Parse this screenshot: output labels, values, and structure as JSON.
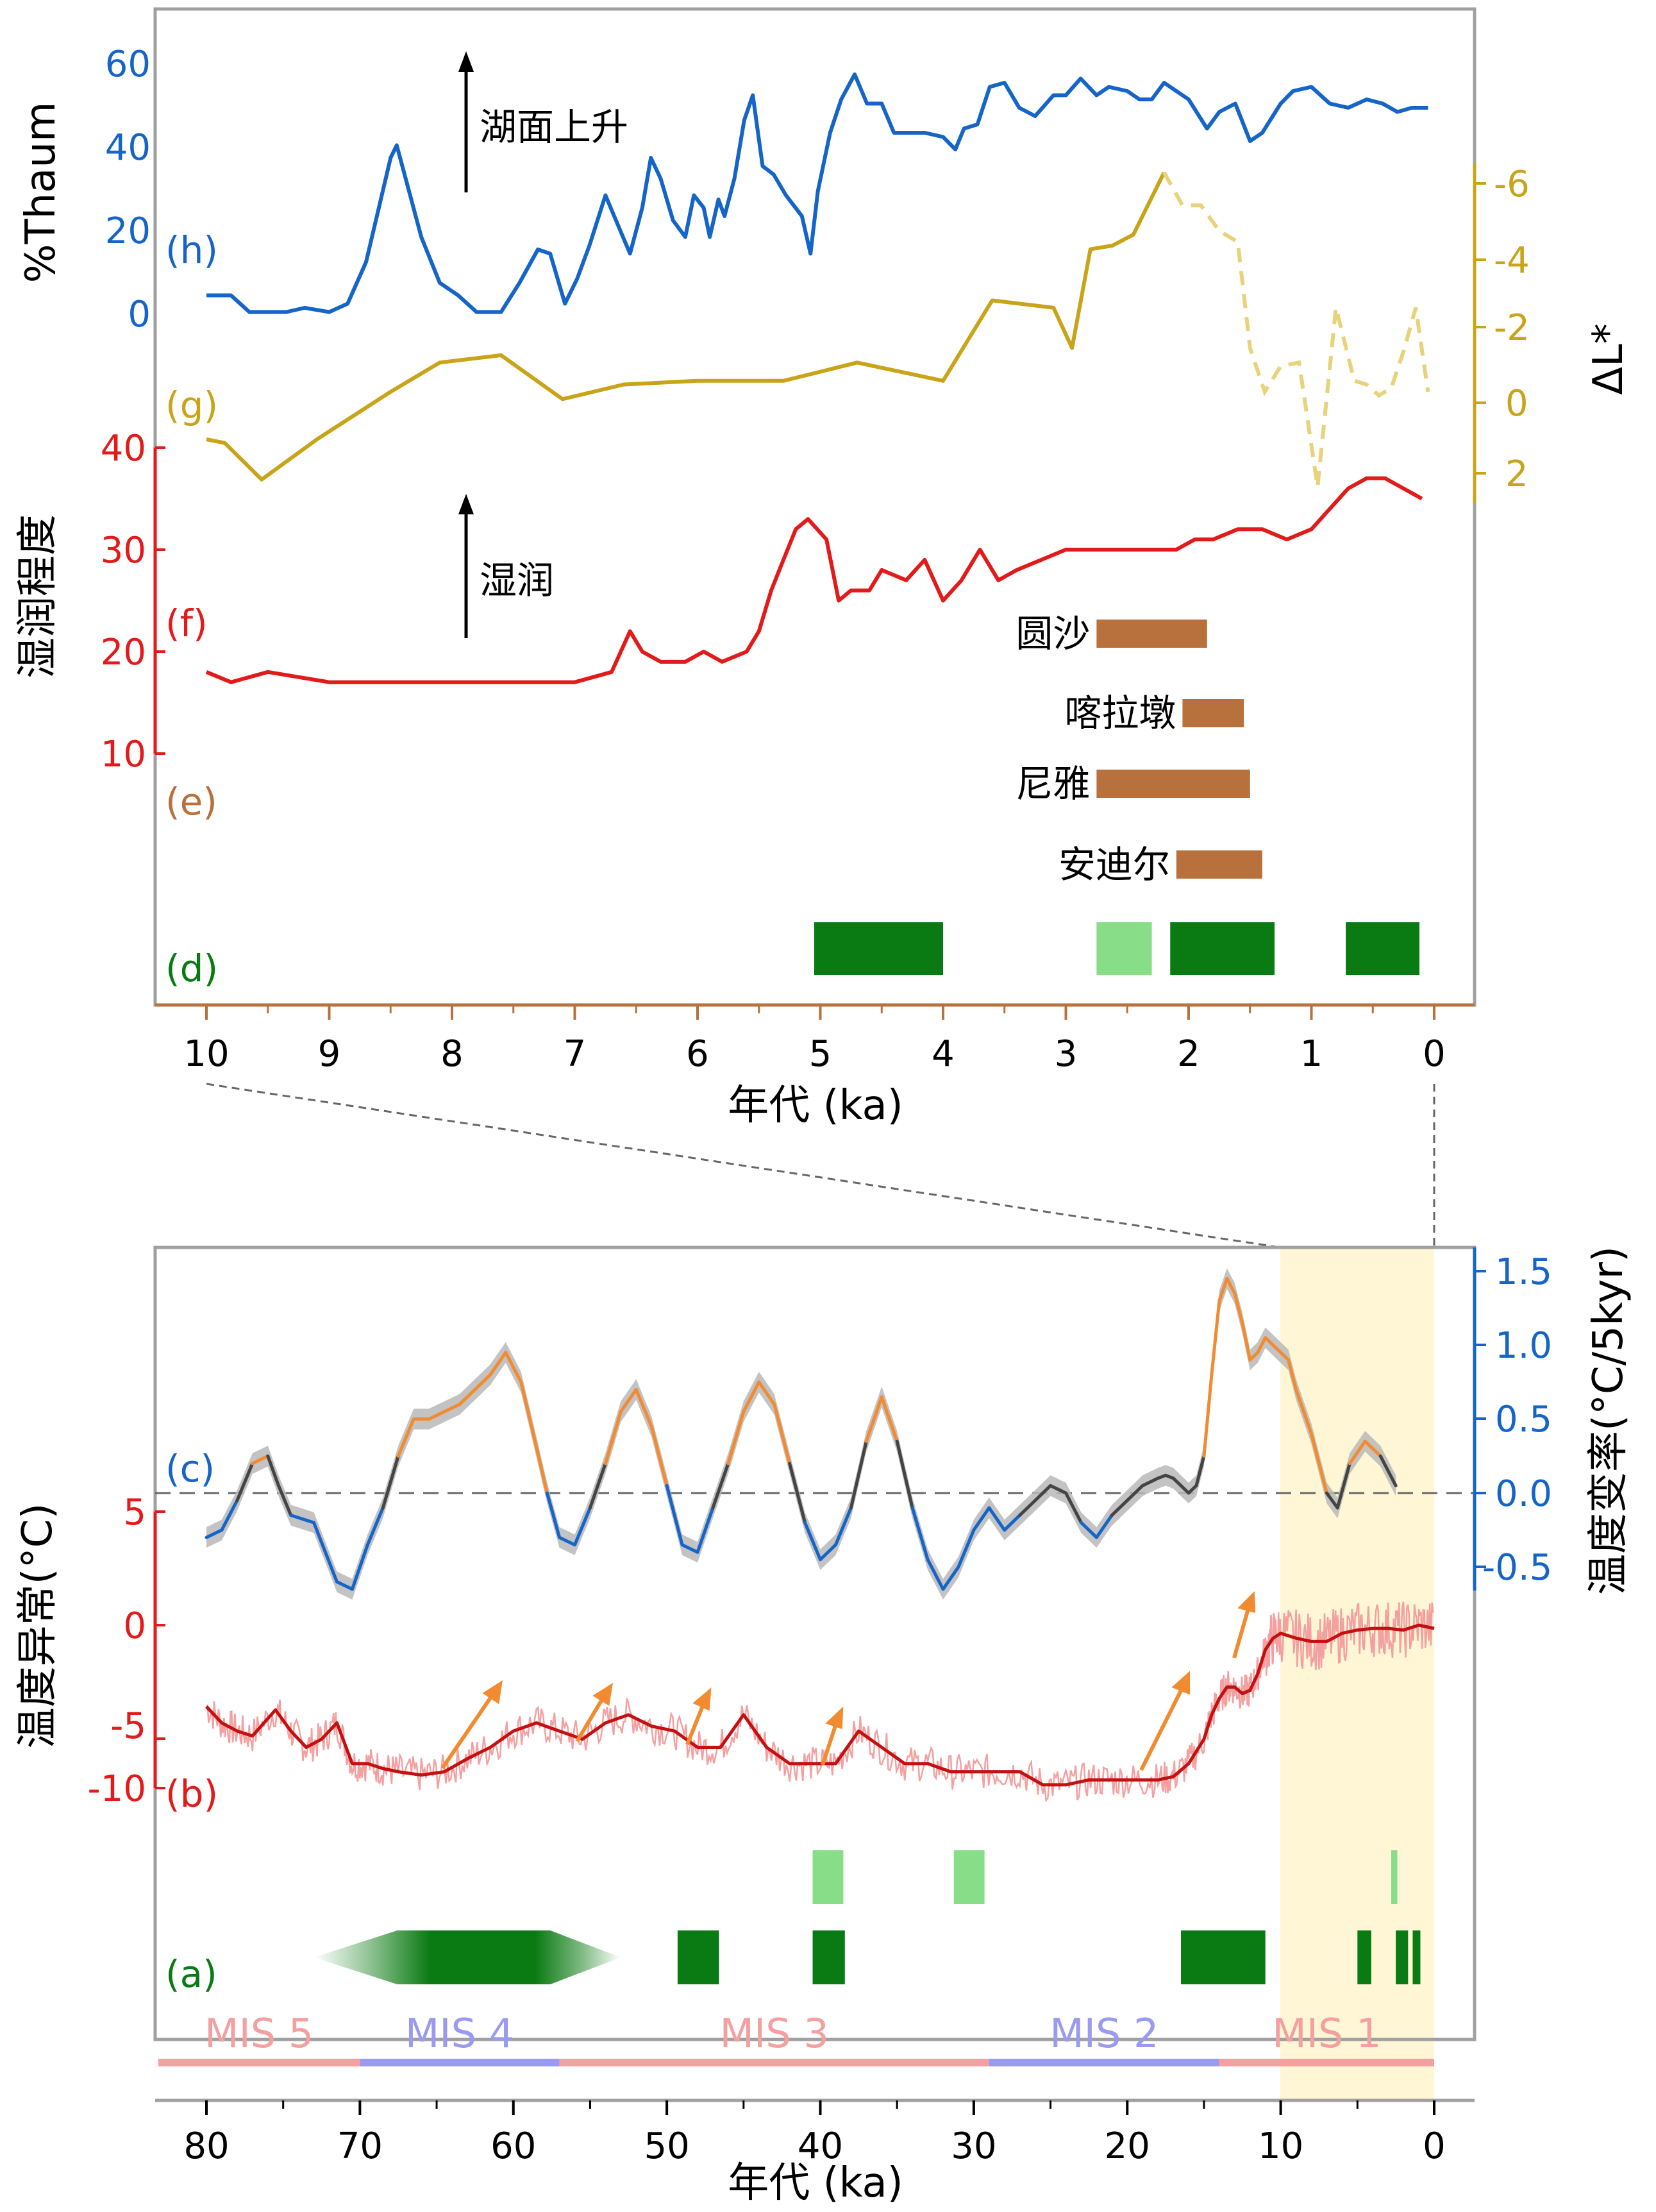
{
  "colors": {
    "blue": "#1565c8",
    "gold": "#c9a318",
    "red": "#e31a1a",
    "copper": "#b8703c",
    "darkgreen": "#0a7a12",
    "lightgreen": "#88dd88",
    "orange": "#f28b30",
    "pink": "#f4a0a0",
    "lavender": "#9a9af0",
    "holocene": "#fff6d6",
    "frame": "#a0a0a0"
  },
  "top_panel": {
    "xlabel": "年代 (ka)",
    "x_ticks": [
      "10",
      "9",
      "8",
      "7",
      "6",
      "5",
      "4",
      "3",
      "2",
      "1",
      "0"
    ],
    "xlim": [
      10,
      0
    ],
    "h": {
      "label": "(h)",
      "ylabel": "%Thaum",
      "ticks": [
        "60",
        "40",
        "20",
        "0"
      ],
      "annotation": "湖面上升"
    },
    "g": {
      "label": "(g)",
      "ylabel": "ΔL*",
      "ticks": [
        "-6",
        "-4",
        "-2",
        "0",
        "2"
      ]
    },
    "f": {
      "label": "(f)",
      "ylabel": "湿润程度",
      "ticks": [
        "40",
        "30",
        "20",
        "10"
      ],
      "annotation": "湿润"
    },
    "e": {
      "label": "(e)",
      "sites": [
        {
          "name": "圆沙",
          "start": 2.75,
          "end": 1.85
        },
        {
          "name": "喀拉墩",
          "start": 2.05,
          "end": 1.55
        },
        {
          "name": "尼雅",
          "start": 2.75,
          "end": 1.5
        },
        {
          "name": "安迪尔",
          "start": 2.1,
          "end": 1.4
        }
      ]
    },
    "d": {
      "label": "(d)",
      "bars": [
        {
          "start": 5.05,
          "end": 4.0,
          "shade": "dark"
        },
        {
          "start": 2.75,
          "end": 2.3,
          "shade": "light"
        },
        {
          "start": 2.15,
          "end": 1.3,
          "shade": "dark"
        },
        {
          "start": 0.72,
          "end": 0.12,
          "shade": "dark"
        }
      ]
    }
  },
  "bottom_panel": {
    "xlabel": "年代 (ka)",
    "x_ticks": [
      "80",
      "70",
      "60",
      "50",
      "40",
      "30",
      "20",
      "10",
      "0"
    ],
    "xlim": [
      80,
      0
    ],
    "holocene_span": [
      10,
      0
    ],
    "c": {
      "label": "(c)",
      "ylabel": "温度变率(°C/5kyr)",
      "ticks": [
        "1.5",
        "1.0",
        "0.5",
        "0.0",
        "-0.5"
      ]
    },
    "b": {
      "label": "(b)",
      "ylabel": "温度异常(°C)",
      "ticks": [
        "5",
        "0",
        "-5",
        "-10"
      ]
    },
    "a": {
      "label": "(a)",
      "light_bars": [
        {
          "start": 40.5,
          "end": 38.5
        },
        {
          "start": 31.3,
          "end": 29.3
        },
        {
          "start": 2.8,
          "end": 2.4
        }
      ],
      "dark_bars": [
        {
          "start": 49.3,
          "end": 46.6
        },
        {
          "start": 40.5,
          "end": 38.4
        },
        {
          "start": 16.5,
          "end": 11.0
        },
        {
          "start": 5.0,
          "end": 4.1
        },
        {
          "start": 2.5,
          "end": 1.7
        },
        {
          "start": 1.4,
          "end": 0.9
        }
      ],
      "gradient_span": [
        73,
        53
      ]
    },
    "mis": [
      {
        "label": "MIS 5",
        "start": 80,
        "end": 70,
        "shade": "pink"
      },
      {
        "label": "MIS 4",
        "start": 70,
        "end": 57,
        "shade": "lavender"
      },
      {
        "label": "MIS 3",
        "start": 57,
        "end": 29,
        "shade": "pink"
      },
      {
        "label": "MIS 2",
        "start": 29,
        "end": 14,
        "shade": "lavender"
      },
      {
        "label": "MIS 1",
        "start": 14,
        "end": 0,
        "shade": "pink"
      }
    ]
  },
  "chart_data": [
    {
      "type": "line",
      "series": [
        {
          "name": "%Thaum",
          "x": [
            10,
            9.8,
            9.65,
            9.5,
            9.35,
            9.2,
            9.0,
            8.85,
            8.7,
            8.5,
            8.45,
            8.35,
            8.25,
            8.1,
            7.95,
            7.8,
            7.6,
            7.45,
            7.3,
            7.2,
            7.08,
            6.98,
            6.88,
            6.75,
            6.65,
            6.55,
            6.45,
            6.38,
            6.3,
            6.2,
            6.1,
            6.03,
            5.95,
            5.9,
            5.83,
            5.78,
            5.7,
            5.62,
            5.55,
            5.47,
            5.38,
            5.28,
            5.15,
            5.08,
            5.02,
            4.92,
            4.83,
            4.72,
            4.62,
            4.5,
            4.4,
            4.3,
            4.15,
            4.0,
            3.9,
            3.83,
            3.72,
            3.62,
            3.5,
            3.38,
            3.25,
            3.1,
            3.0,
            2.88,
            2.75,
            2.65,
            2.5,
            2.4,
            2.3,
            2.2,
            2.0,
            1.85,
            1.75,
            1.62,
            1.5,
            1.4,
            1.25,
            1.15,
            1.0,
            0.85,
            0.7,
            0.55,
            0.42,
            0.3,
            0.18,
            0.05
          ],
          "y": [
            5,
            5,
            1,
            1,
            1,
            2,
            1,
            3,
            13,
            38,
            41,
            30,
            19,
            8,
            5,
            1,
            1,
            8,
            16,
            15,
            3,
            9,
            17,
            29,
            22,
            15,
            26,
            38,
            33,
            23,
            19,
            29,
            26,
            19,
            28,
            24,
            33,
            47,
            53,
            36,
            34,
            29,
            24,
            15,
            30,
            44,
            52,
            58,
            51,
            51,
            44,
            44,
            44,
            43,
            40,
            45,
            46,
            55,
            56,
            50,
            48,
            53,
            53,
            57,
            53,
            55,
            54,
            52,
            52,
            56,
            52,
            45,
            49,
            51,
            42,
            44,
            51,
            54,
            55,
            51,
            50,
            52,
            51,
            49,
            50,
            50
          ]
        },
        {
          "name": "ΔL*",
          "x": [
            10,
            9.85,
            9.55,
            9.1,
            8.5,
            8.1,
            7.6,
            7.1,
            6.6,
            6.0,
            5.3,
            4.7,
            4.0,
            3.6,
            3.1,
            2.95,
            2.8,
            2.62,
            2.45,
            2.2
          ],
          "y": [
            1.0,
            1.1,
            2.1,
            1.0,
            -0.3,
            -1.1,
            -1.3,
            -0.1,
            -0.5,
            -0.6,
            -0.6,
            -1.1,
            -0.6,
            -2.8,
            -2.6,
            -1.5,
            -4.2,
            -4.3,
            -4.6,
            -6.3
          ],
          "dashed_x": [
            2.2,
            2.05,
            1.9,
            1.75,
            1.6,
            1.5,
            1.38,
            1.25,
            1.1,
            0.95,
            0.8,
            0.65,
            0.55,
            0.45,
            0.35,
            0.25,
            0.15,
            0.05
          ],
          "dashed_y": [
            -6.3,
            -5.4,
            -5.4,
            -4.7,
            -4.4,
            -1.5,
            -0.3,
            -1.0,
            -1.1,
            2.3,
            -2.6,
            -0.6,
            -0.5,
            -0.2,
            -0.4,
            -1.4,
            -2.6,
            -0.3
          ]
        },
        {
          "name": "湿润程度",
          "x": [
            10,
            9.8,
            9.5,
            9.0,
            8.5,
            8.0,
            7.5,
            7.0,
            6.7,
            6.55,
            6.45,
            6.3,
            6.1,
            5.95,
            5.8,
            5.6,
            5.5,
            5.4,
            5.3,
            5.2,
            5.1,
            4.95,
            4.85,
            4.75,
            4.6,
            4.5,
            4.3,
            4.15,
            4.0,
            3.85,
            3.7,
            3.55,
            3.4,
            3.2,
            3.0,
            2.8,
            2.5,
            2.3,
            2.1,
            1.95,
            1.8,
            1.6,
            1.4,
            1.2,
            1.0,
            0.85,
            0.7,
            0.55,
            0.4,
            0.25,
            0.1
          ],
          "y": [
            18,
            17,
            18,
            17,
            17,
            17,
            17,
            17,
            18,
            22,
            20,
            19,
            19,
            20,
            19,
            20,
            22,
            26,
            29,
            32,
            33,
            31,
            25,
            26,
            26,
            28,
            27,
            29,
            25,
            27,
            30,
            27,
            28,
            29,
            30,
            30,
            30,
            30,
            30,
            31,
            31,
            32,
            32,
            31,
            32,
            34,
            36,
            37,
            37,
            36,
            35
          ]
        }
      ],
      "xlabel": "年代 (ka)",
      "xlim": [
        10,
        0
      ],
      "h_ylim": [
        -5,
        65
      ],
      "g_ylim": [
        2.3,
        -7.0
      ],
      "f_ylim": [
        5,
        45
      ]
    },
    {
      "type": "line",
      "series": [
        {
          "name": "温度变率",
          "x": [
            80,
            79,
            78,
            77,
            76,
            75.3,
            74.5,
            73,
            71.5,
            70.5,
            69.5,
            68.5,
            67.5,
            66.5,
            65.5,
            64.5,
            63.5,
            62.5,
            61.5,
            60.5,
            59.5,
            58.7,
            57.8,
            57,
            56,
            55,
            54,
            53,
            52,
            51,
            50,
            49,
            48,
            47,
            46,
            45,
            44,
            43,
            42,
            41,
            40,
            39,
            38,
            37,
            36,
            35,
            34,
            33,
            32,
            31,
            30,
            29,
            28,
            27,
            26,
            25,
            24,
            23,
            22,
            21,
            20,
            19,
            18,
            17.5,
            17,
            16.5,
            16,
            15.5,
            15,
            14.5,
            14,
            13.5,
            13,
            12.5,
            12,
            11.5,
            11,
            10.5,
            10,
            9.5,
            9,
            8,
            7,
            6.3,
            5.5,
            4.5,
            3.5,
            2.5
          ],
          "y": [
            -0.3,
            -0.25,
            -0.05,
            0.2,
            0.25,
            0.05,
            -0.15,
            -0.2,
            -0.6,
            -0.65,
            -0.35,
            -0.1,
            0.25,
            0.5,
            0.5,
            0.55,
            0.6,
            0.7,
            0.8,
            0.95,
            0.75,
            0.4,
            0.0,
            -0.3,
            -0.35,
            -0.1,
            0.2,
            0.55,
            0.7,
            0.45,
            0.05,
            -0.35,
            -0.4,
            -0.1,
            0.2,
            0.55,
            0.75,
            0.6,
            0.2,
            -0.2,
            -0.45,
            -0.35,
            -0.1,
            0.35,
            0.65,
            0.35,
            -0.1,
            -0.45,
            -0.65,
            -0.5,
            -0.25,
            -0.1,
            -0.25,
            -0.15,
            -0.05,
            0.05,
            0.0,
            -0.2,
            -0.3,
            -0.15,
            -0.05,
            0.05,
            0.1,
            0.12,
            0.1,
            0.05,
            0.0,
            0.05,
            0.25,
            0.8,
            1.3,
            1.45,
            1.35,
            1.15,
            0.9,
            0.95,
            1.05,
            1.0,
            0.95,
            0.9,
            0.7,
            0.4,
            0.0,
            -0.1,
            0.2,
            0.35,
            0.25,
            0.05
          ]
        },
        {
          "name": "温度异常",
          "x": [
            80,
            79,
            78,
            77,
            75.5,
            74.5,
            73.5,
            72.5,
            71.5,
            70.5,
            69.5,
            68.5,
            67.5,
            66,
            64.5,
            63,
            61.5,
            60,
            58.5,
            57,
            55.5,
            54,
            52.5,
            51,
            49.5,
            48,
            46.5,
            45,
            43.5,
            42,
            40.5,
            39,
            37.5,
            36,
            34.5,
            33,
            31.5,
            30,
            28.5,
            27,
            25.5,
            24,
            22.5,
            21,
            19.5,
            18,
            17,
            16,
            15,
            14.5,
            14,
            13.5,
            13,
            12.5,
            12,
            11.5,
            11,
            10.5,
            10,
            9,
            8,
            7,
            6,
            5,
            4,
            3,
            2,
            1,
            0
          ],
          "y": [
            -5,
            -6,
            -6.5,
            -6.8,
            -5.2,
            -6.5,
            -7.5,
            -7,
            -6,
            -8.5,
            -8.5,
            -8.8,
            -9,
            -9.2,
            -9,
            -8.2,
            -7.5,
            -6.5,
            -6,
            -6.5,
            -7,
            -6,
            -5.5,
            -6.2,
            -6.5,
            -7.5,
            -7.5,
            -5.5,
            -7.5,
            -8.5,
            -8.5,
            -8.5,
            -6.5,
            -7.5,
            -8.5,
            -8.5,
            -9,
            -9,
            -9,
            -9,
            -9.8,
            -9.8,
            -9.5,
            -9.5,
            -9.5,
            -9.5,
            -9.3,
            -8.5,
            -7,
            -5.5,
            -4.5,
            -3.8,
            -3.8,
            -4.2,
            -4,
            -3,
            -1.5,
            -0.8,
            -0.5,
            -0.8,
            -1,
            -1,
            -0.5,
            -0.3,
            -0.2,
            -0.2,
            -0.3,
            0,
            -0.2
          ]
        }
      ],
      "xlabel": "年代 (ka)",
      "xlim": [
        80,
        0
      ],
      "c_ylim": [
        -0.7,
        1.65
      ],
      "b_ylim": [
        -11.5,
        6.5
      ]
    }
  ]
}
